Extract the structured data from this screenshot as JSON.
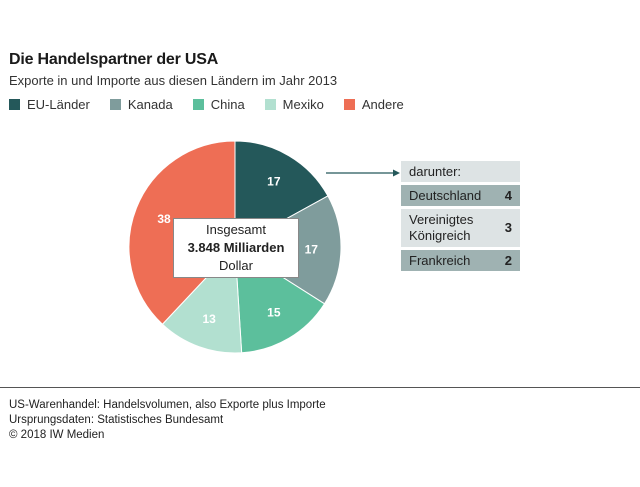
{
  "chart_data": {
    "type": "pie",
    "title": "Die Handelspartner der USA",
    "subtitle": "Exporte in und Importe aus diesen Ländern im Jahr 2013",
    "unit": "%",
    "legend_position": "top",
    "slices": [
      {
        "name": "EU-Länder",
        "value": 17,
        "label": "17",
        "color": "#24585a"
      },
      {
        "name": "Kanada",
        "value": 17,
        "label": "17",
        "color": "#7f9c9c"
      },
      {
        "name": "China",
        "value": 15,
        "label": "15",
        "color": "#5cbf9c"
      },
      {
        "name": "Mexiko",
        "value": 13,
        "label": "13",
        "color": "#b2e0d0"
      },
      {
        "name": "Andere",
        "value": 38,
        "label": "38",
        "color": "#ee6e55"
      }
    ],
    "total": {
      "line1": "Insgesamt",
      "line2": "3.848 Milliarden",
      "line3": "Dollar"
    },
    "breakout": {
      "header": "darunter:",
      "of": "EU-Länder",
      "items": [
        {
          "name": "Deutschland",
          "value": 4
        },
        {
          "name_line1": "Vereinigtes",
          "name_line2": "Königreich",
          "value": 3
        },
        {
          "name": "Frankreich",
          "value": 2
        }
      ]
    }
  },
  "footer": {
    "line1": "US-Warenhandel: Handelsvolumen, also Exporte plus Importe",
    "line2": "Ursprungsdaten: Statistisches Bundesamt",
    "line3": "© 2018 IW Medien"
  }
}
